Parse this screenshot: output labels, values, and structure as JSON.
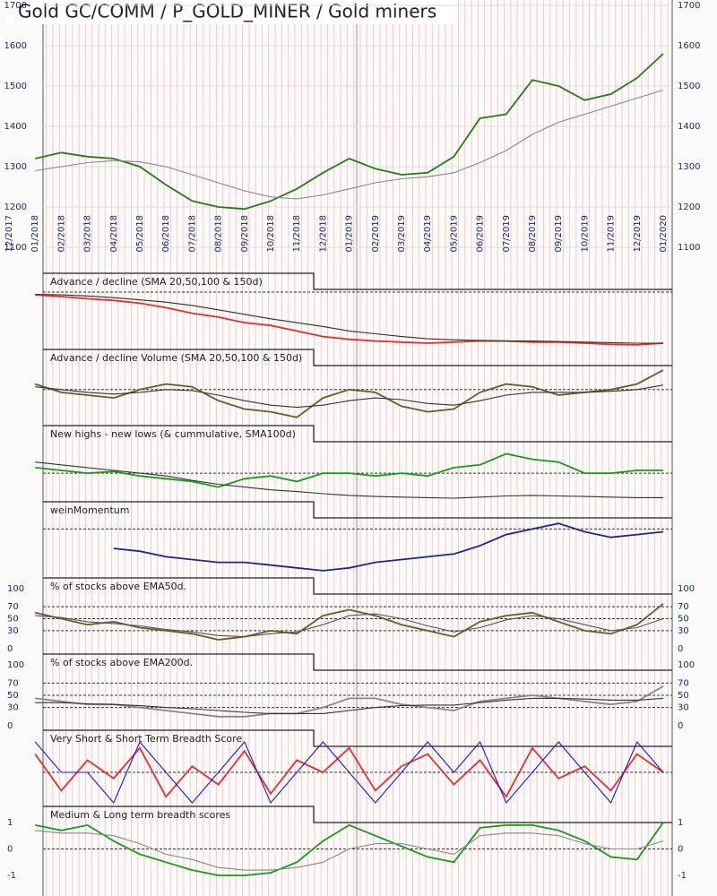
{
  "chart_data": [
    {
      "type": "line",
      "title": "Gold GC/COMM / P_GOLD_MINER / Gold miners",
      "categories": [
        "12/2017",
        "01/2018",
        "02/2018",
        "03/2018",
        "04/2018",
        "05/2018",
        "06/2018",
        "07/2018",
        "08/2018",
        "09/2018",
        "10/2018",
        "11/2018",
        "12/2018",
        "01/2019",
        "02/2019",
        "03/2019",
        "04/2019",
        "05/2019",
        "06/2019",
        "07/2019",
        "08/2019",
        "09/2019",
        "10/2019",
        "11/2019",
        "12/2019",
        "01/2020"
      ],
      "ylim": [
        1100,
        1700
      ],
      "yticks": [
        1100,
        1200,
        1300,
        1400,
        1500,
        1600,
        1700
      ],
      "series": [
        {
          "color": "#2a7a1a",
          "values": [
            null,
            1320,
            1335,
            1325,
            1320,
            1300,
            1255,
            1215,
            1200,
            1195,
            1215,
            1245,
            1285,
            1320,
            1295,
            1280,
            1285,
            1325,
            1420,
            1430,
            1515,
            1500,
            1465,
            1480,
            1520,
            1580
          ]
        },
        {
          "color": "#888888",
          "values": [
            null,
            1290,
            1300,
            1310,
            1315,
            1312,
            1300,
            1280,
            1260,
            1240,
            1225,
            1220,
            1230,
            1245,
            1260,
            1270,
            1275,
            1285,
            1310,
            1340,
            1380,
            1410,
            1430,
            1450,
            1470,
            1490
          ]
        }
      ]
    },
    {
      "type": "line",
      "title": "Advance / decline (SMA 20,50,100 & 150d)",
      "ylim": [
        0,
        100
      ],
      "hlines": [
        100
      ],
      "series": [
        {
          "color": "#e03030",
          "values": [
            null,
            95,
            92,
            88,
            85,
            80,
            72,
            62,
            55,
            45,
            40,
            30,
            20,
            15,
            12,
            10,
            8,
            10,
            12,
            12,
            10,
            10,
            8,
            6,
            5,
            8
          ]
        },
        {
          "color": "#3a2a2a",
          "values": [
            null,
            96,
            95,
            93,
            90,
            86,
            82,
            76,
            68,
            60,
            52,
            45,
            38,
            30,
            25,
            20,
            16,
            14,
            13,
            12,
            12,
            11,
            10,
            9,
            8,
            8
          ]
        }
      ]
    },
    {
      "type": "line",
      "title": "Advance / decline Volume (SMA 20,50,100 & 150d)",
      "ylim": [
        0,
        100
      ],
      "hlines": [
        60
      ],
      "series": [
        {
          "color": "#6b5a2a",
          "values": [
            null,
            70,
            55,
            50,
            45,
            60,
            70,
            65,
            40,
            25,
            20,
            10,
            45,
            60,
            55,
            30,
            20,
            25,
            55,
            70,
            65,
            50,
            55,
            60,
            70,
            95
          ]
        },
        {
          "color": "#333333",
          "values": [
            null,
            65,
            60,
            55,
            52,
            55,
            60,
            58,
            50,
            40,
            32,
            28,
            32,
            40,
            45,
            42,
            35,
            32,
            40,
            50,
            55,
            55,
            55,
            57,
            60,
            68
          ]
        }
      ]
    },
    {
      "type": "line",
      "title": "New highs - new lows (& cummulative, SMA100d)",
      "ylim": [
        0,
        100
      ],
      "hlines": [
        45
      ],
      "series": [
        {
          "color": "#1a9a1a",
          "values": [
            null,
            55,
            50,
            45,
            48,
            40,
            35,
            30,
            20,
            35,
            40,
            30,
            45,
            45,
            40,
            45,
            40,
            55,
            60,
            80,
            70,
            65,
            45,
            45,
            50,
            50
          ]
        },
        {
          "color": "#2a3a2a",
          "values": [
            null,
            65,
            60,
            55,
            50,
            45,
            40,
            32,
            25,
            20,
            15,
            12,
            8,
            5,
            3,
            2,
            1,
            0,
            2,
            4,
            5,
            4,
            3,
            2,
            1,
            1
          ]
        }
      ]
    },
    {
      "type": "line",
      "title": "weinMomentum",
      "ylim": [
        0,
        100
      ],
      "hlines": [
        80
      ],
      "series": [
        {
          "color": "#1a2a8a",
          "values": [
            null,
            null,
            null,
            null,
            45,
            40,
            30,
            25,
            20,
            20,
            15,
            10,
            5,
            10,
            20,
            25,
            30,
            35,
            50,
            70,
            80,
            90,
            75,
            65,
            70,
            75
          ]
        }
      ]
    },
    {
      "type": "line",
      "title": "% of stocks above EMA50d.",
      "ylim": [
        0,
        100
      ],
      "yticks": [
        0,
        30,
        50,
        70,
        100
      ],
      "hlines": [
        30,
        50,
        70
      ],
      "series": [
        {
          "color": "#6b5a2a",
          "values": [
            null,
            60,
            50,
            40,
            45,
            35,
            30,
            25,
            15,
            20,
            30,
            25,
            55,
            65,
            55,
            40,
            30,
            20,
            45,
            55,
            60,
            45,
            30,
            25,
            40,
            75
          ]
        },
        {
          "color": "#555555",
          "values": [
            null,
            55,
            52,
            45,
            42,
            38,
            32,
            28,
            22,
            20,
            25,
            28,
            40,
            55,
            58,
            50,
            38,
            28,
            35,
            48,
            55,
            50,
            40,
            30,
            35,
            50
          ]
        }
      ]
    },
    {
      "type": "line",
      "title": "% of stocks above EMA200d.",
      "ylim": [
        0,
        100
      ],
      "yticks": [
        0,
        30,
        50,
        70,
        100
      ],
      "hlines": [
        30,
        50,
        70
      ],
      "series": [
        {
          "color": "#888888",
          "values": [
            null,
            45,
            40,
            35,
            35,
            30,
            25,
            20,
            15,
            15,
            20,
            20,
            30,
            45,
            45,
            35,
            30,
            25,
            40,
            45,
            50,
            45,
            40,
            35,
            40,
            65
          ]
        },
        {
          "color": "#333333",
          "values": [
            null,
            38,
            38,
            36,
            35,
            33,
            30,
            28,
            25,
            22,
            20,
            20,
            20,
            25,
            30,
            33,
            34,
            34,
            38,
            42,
            45,
            45,
            44,
            42,
            42,
            45
          ]
        }
      ]
    },
    {
      "type": "line",
      "title": "Very Short & Short Term Breadth Score",
      "ylim": [
        0,
        100
      ],
      "hlines": [
        50
      ],
      "series": [
        {
          "color": "#e03030",
          "values": [
            null,
            80,
            20,
            70,
            40,
            90,
            10,
            60,
            30,
            85,
            15,
            70,
            50,
            90,
            20,
            60,
            80,
            30,
            70,
            10,
            90,
            40,
            60,
            20,
            80,
            50
          ]
        },
        {
          "color": "#1a1ad0",
          "values": [
            null,
            100,
            50,
            50,
            0,
            100,
            50,
            0,
            50,
            100,
            0,
            50,
            100,
            50,
            0,
            50,
            100,
            50,
            100,
            0,
            50,
            100,
            50,
            0,
            100,
            50
          ]
        }
      ]
    },
    {
      "type": "line",
      "title": "Medium & Long term breadth scores",
      "ylim": [
        -1.1,
        1.1
      ],
      "yticks": [
        -1,
        0,
        1
      ],
      "hlines": [
        0
      ],
      "series": [
        {
          "color": "#1a9a1a",
          "values": [
            null,
            0.9,
            0.7,
            0.9,
            0.3,
            -0.2,
            -0.5,
            -0.8,
            -1,
            -1,
            -0.9,
            -0.5,
            0.3,
            0.9,
            0.5,
            0.1,
            -0.3,
            -0.5,
            0.8,
            0.9,
            0.9,
            0.7,
            0.3,
            -0.3,
            -0.4,
            1
          ]
        },
        {
          "color": "#888888",
          "values": [
            null,
            0.7,
            0.6,
            0.6,
            0.5,
            0.2,
            -0.2,
            -0.4,
            -0.7,
            -0.8,
            -0.8,
            -0.7,
            -0.5,
            0,
            0.2,
            0.2,
            0,
            -0.2,
            0.5,
            0.6,
            0.6,
            0.5,
            0.2,
            0,
            0,
            0.3
          ]
        }
      ]
    }
  ]
}
